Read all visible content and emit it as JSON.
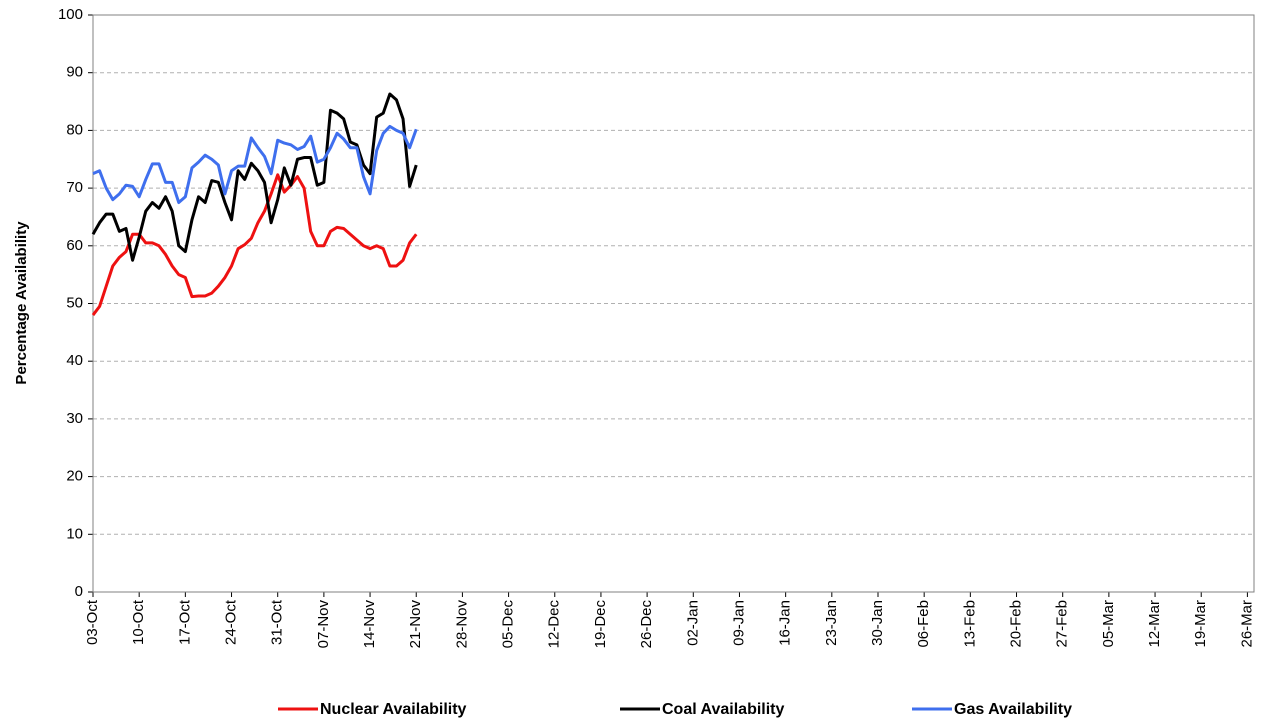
{
  "chart_data": {
    "type": "line",
    "ylabel": "Percentage Availability",
    "x": [
      0,
      1,
      2,
      3,
      4,
      5,
      6,
      7,
      8,
      9,
      10,
      11,
      12,
      13,
      14,
      15,
      16,
      17,
      18,
      19,
      20,
      21,
      22,
      23,
      24,
      25,
      26,
      27,
      28,
      29,
      30,
      31,
      32,
      33,
      34,
      35,
      36,
      37,
      38,
      39,
      40,
      41,
      42,
      43,
      44,
      45,
      46,
      47,
      48,
      49
    ],
    "xlim": [
      0,
      176
    ],
    "xticks": [
      {
        "value": 0,
        "label": "03-Oct"
      },
      {
        "value": 7,
        "label": "10-Oct"
      },
      {
        "value": 14,
        "label": "17-Oct"
      },
      {
        "value": 21,
        "label": "24-Oct"
      },
      {
        "value": 28,
        "label": "31-Oct"
      },
      {
        "value": 35,
        "label": "07-Nov"
      },
      {
        "value": 42,
        "label": "14-Nov"
      },
      {
        "value": 49,
        "label": "21-Nov"
      },
      {
        "value": 56,
        "label": "28-Nov"
      },
      {
        "value": 63,
        "label": "05-Dec"
      },
      {
        "value": 70,
        "label": "12-Dec"
      },
      {
        "value": 77,
        "label": "19-Dec"
      },
      {
        "value": 84,
        "label": "26-Dec"
      },
      {
        "value": 91,
        "label": "02-Jan"
      },
      {
        "value": 98,
        "label": "09-Jan"
      },
      {
        "value": 105,
        "label": "16-Jan"
      },
      {
        "value": 112,
        "label": "23-Jan"
      },
      {
        "value": 119,
        "label": "30-Jan"
      },
      {
        "value": 126,
        "label": "06-Feb"
      },
      {
        "value": 133,
        "label": "13-Feb"
      },
      {
        "value": 140,
        "label": "20-Feb"
      },
      {
        "value": 147,
        "label": "27-Feb"
      },
      {
        "value": 154,
        "label": "05-Mar"
      },
      {
        "value": 161,
        "label": "12-Mar"
      },
      {
        "value": 168,
        "label": "19-Mar"
      },
      {
        "value": 175,
        "label": "26-Mar"
      }
    ],
    "ylim": [
      0,
      100
    ],
    "yticks": [
      0,
      10,
      20,
      30,
      40,
      50,
      60,
      70,
      80,
      90,
      100
    ],
    "grid": true,
    "legend": "bottom",
    "series": [
      {
        "name": "Nuclear Availability",
        "color": "#ee1111",
        "values": [
          48,
          49.5,
          53,
          56.5,
          58,
          59,
          62,
          62,
          60.5,
          60.5,
          60,
          58.5,
          56.5,
          55,
          54.5,
          51.2,
          51.3,
          51.3,
          51.8,
          53,
          54.5,
          56.5,
          59.5,
          60.2,
          61.3,
          64,
          66,
          69,
          72.3,
          69.3,
          70.5,
          72,
          70,
          62.5,
          60,
          60,
          62.5,
          63.2,
          63,
          62,
          61,
          60,
          59.5,
          60,
          59.5,
          56.5,
          56.5,
          57.5,
          60.5,
          62
        ]
      },
      {
        "name": "Coal Availability",
        "color": "#000000",
        "values": [
          62,
          64,
          65.5,
          65.5,
          62.5,
          63,
          57.5,
          61.5,
          66,
          67.5,
          66.5,
          68.5,
          66,
          60,
          59,
          64.5,
          68.5,
          67.5,
          71.3,
          71,
          67.5,
          64.5,
          73,
          71.5,
          74.3,
          73,
          71,
          64,
          68,
          73.5,
          70.5,
          75,
          75.3,
          75.3,
          70.5,
          71,
          83.5,
          83,
          82,
          78,
          77.5,
          74,
          72.5,
          82.3,
          83,
          86.3,
          85.3,
          82,
          70.3,
          74
        ]
      },
      {
        "name": "Gas Availability",
        "color": "#3f6fee",
        "values": [
          72.5,
          73,
          70,
          68,
          69,
          70.5,
          70.3,
          68.5,
          71.5,
          74.2,
          74.2,
          71,
          71,
          67.5,
          68.5,
          73.5,
          74.5,
          75.7,
          75,
          74,
          69,
          73,
          73.8,
          73.8,
          78.7,
          77,
          75.5,
          72.5,
          78.3,
          77.8,
          77.5,
          76.7,
          77.2,
          79,
          74.5,
          75,
          77,
          79.5,
          78.5,
          77,
          77,
          72,
          69,
          76.5,
          79.5,
          80.7,
          80,
          79.5,
          77,
          80.2
        ]
      }
    ]
  }
}
